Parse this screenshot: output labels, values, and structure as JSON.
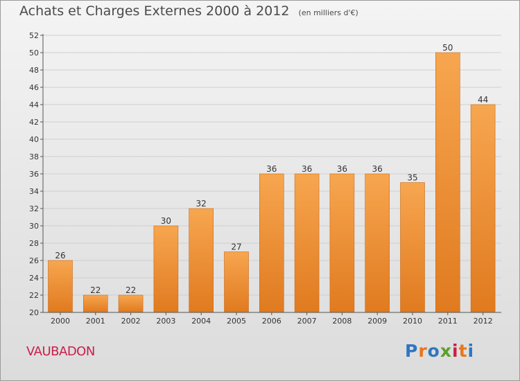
{
  "header": {
    "title": "Achats et Charges Externes 2000 à 2012",
    "subtitle": "(en milliers d'€)"
  },
  "commune": "VAUBADON",
  "logo": {
    "text": "Proxiti",
    "letters": [
      "P",
      "r",
      "o",
      "x",
      "i",
      "t",
      "i"
    ],
    "colors": [
      "#2f76c0",
      "#e8761a",
      "#2f76c0",
      "#5aa02c",
      "#c8204a",
      "#e8761a",
      "#2f76c0"
    ]
  },
  "colors": {
    "bar_top": "#f7a650",
    "bar_bottom": "#e07a1f",
    "bar_edge": "#c96a18",
    "grid": "#cfcfcf",
    "axis": "#555555"
  },
  "chart_data": {
    "type": "bar",
    "categories": [
      "2000",
      "2001",
      "2002",
      "2003",
      "2004",
      "2005",
      "2006",
      "2007",
      "2008",
      "2009",
      "2010",
      "2011",
      "2012"
    ],
    "values": [
      26,
      22,
      22,
      30,
      32,
      27,
      36,
      36,
      36,
      36,
      35,
      50,
      44
    ],
    "title": "Achats et Charges Externes 2000 à 2012",
    "subtitle": "(en milliers d'€)",
    "ylim": [
      20,
      52
    ],
    "ytick_step": 2,
    "grid": true,
    "data_labels": true
  }
}
